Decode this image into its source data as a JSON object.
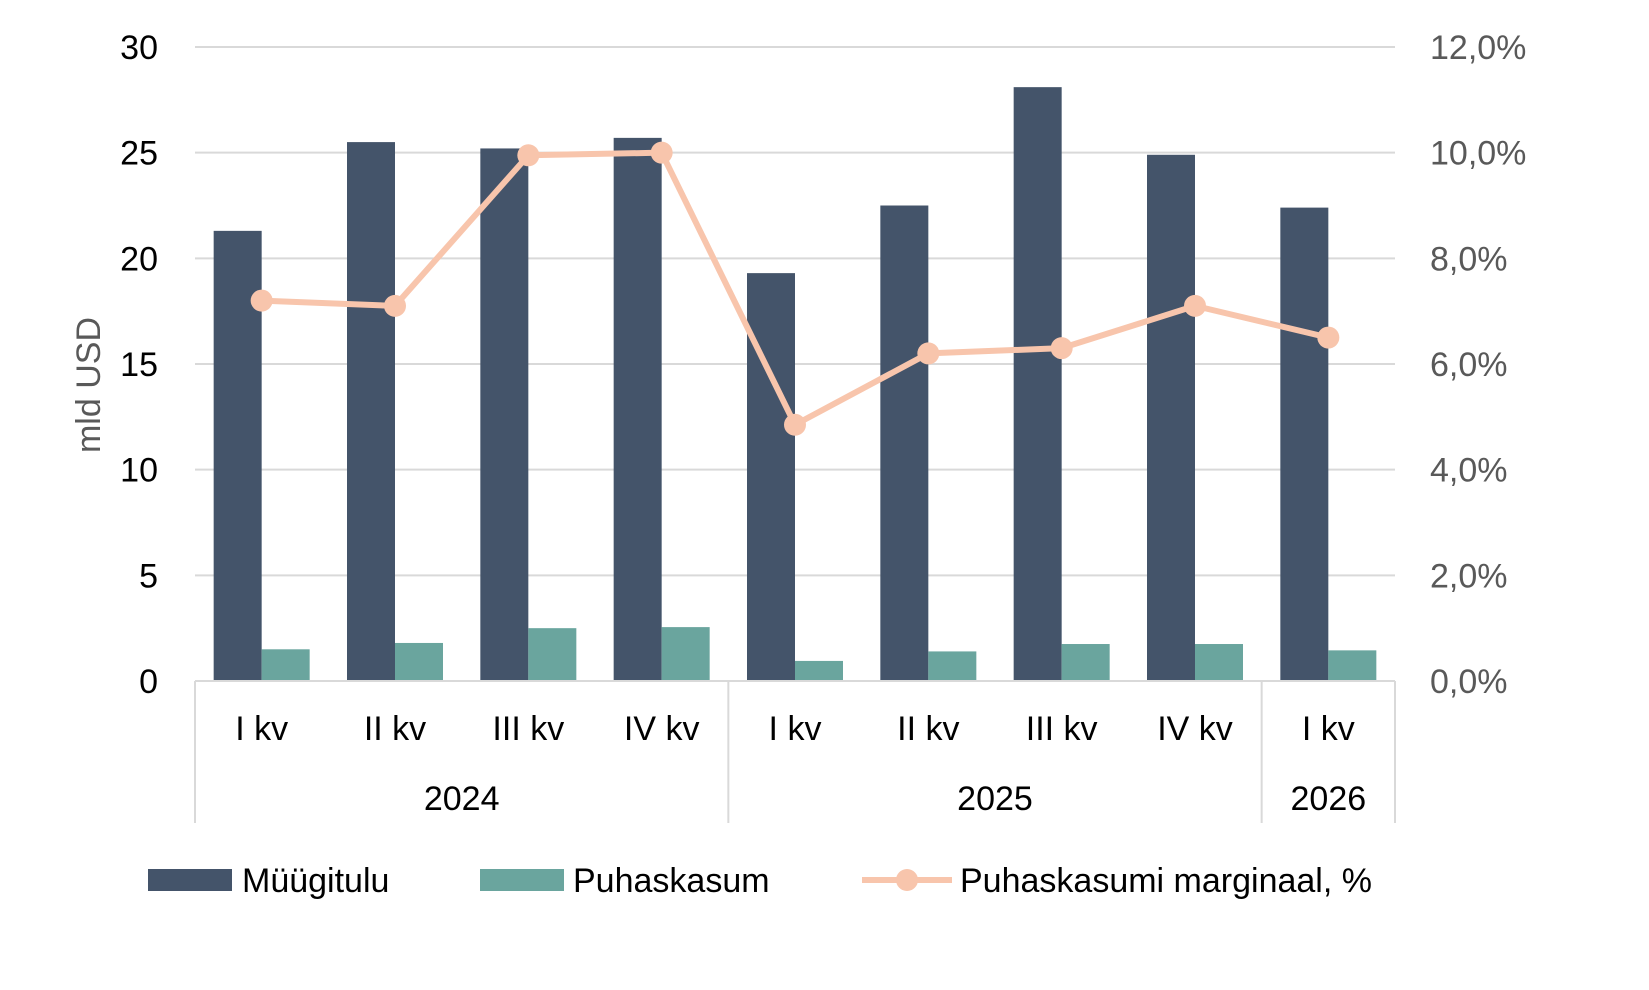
{
  "chart_data": {
    "type": "bar",
    "categories": [
      "I kv",
      "II kv",
      "III kv",
      "IV kv",
      "I kv",
      "II kv",
      "III kv",
      "IV kv",
      "I kv"
    ],
    "groups": [
      {
        "label": "2024",
        "count": 4
      },
      {
        "label": "2025",
        "count": 4
      },
      {
        "label": "2026",
        "count": 1
      }
    ],
    "series": [
      {
        "name": "Müügitulu",
        "type": "bar",
        "axis": "left",
        "color": "#44546a",
        "values": [
          21.3,
          25.5,
          25.2,
          25.7,
          19.3,
          22.5,
          28.1,
          24.9,
          22.4
        ]
      },
      {
        "name": "Puhaskasum",
        "type": "bar",
        "axis": "left",
        "color": "#6aa59e",
        "values": [
          1.5,
          1.8,
          2.5,
          2.55,
          0.95,
          1.4,
          1.75,
          1.75,
          1.45
        ]
      },
      {
        "name": "Puhaskasumi marginaal, %",
        "type": "line",
        "axis": "right",
        "color": "#f8c5ac",
        "values": [
          7.2,
          7.1,
          9.95,
          10.0,
          4.85,
          6.2,
          6.3,
          7.1,
          6.5
        ]
      }
    ],
    "ylabel": "mld USD",
    "ylim": [
      0,
      30
    ],
    "yticks": [
      "0",
      "5",
      "10",
      "15",
      "20",
      "25",
      "30"
    ],
    "y2lim": [
      0,
      12
    ],
    "y2ticks": [
      "0,0%",
      "2,0%",
      "4,0%",
      "6,0%",
      "8,0%",
      "10,0%",
      "12,0%"
    ],
    "grid": true,
    "legend": "bottom"
  }
}
